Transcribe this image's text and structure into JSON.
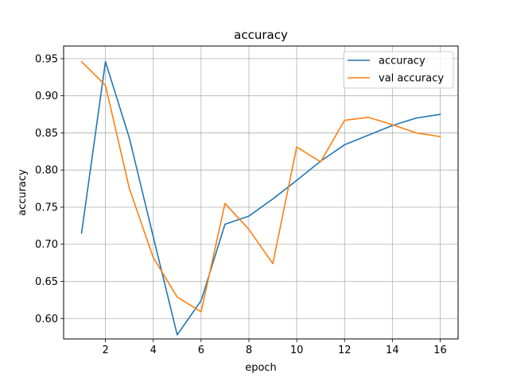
{
  "chart_data": {
    "type": "line",
    "title": "accuracy",
    "xlabel": "epoch",
    "ylabel": "accuracy",
    "xlim": [
      0.25,
      16.75
    ],
    "ylim": [
      0.5725,
      0.967
    ],
    "xticks": [
      2,
      4,
      6,
      8,
      10,
      12,
      14,
      16
    ],
    "yticks": [
      0.6,
      0.65,
      0.7,
      0.75,
      0.8,
      0.85,
      0.9,
      0.95
    ],
    "grid": true,
    "legend_position": "top-right",
    "x": [
      1,
      2,
      3,
      4,
      5,
      6,
      7,
      8,
      9,
      10,
      11,
      12,
      13,
      14,
      15,
      16
    ],
    "series": [
      {
        "name": "accuracy",
        "color": "#1f77b4",
        "values": [
          0.715,
          0.946,
          0.843,
          0.71,
          0.578,
          0.624,
          0.727,
          0.738,
          0.761,
          0.786,
          0.812,
          0.834,
          0.847,
          0.86,
          0.87,
          0.875
        ]
      },
      {
        "name": "val accuracy",
        "color": "#ff7f0e",
        "values": [
          0.946,
          0.914,
          0.775,
          0.682,
          0.629,
          0.609,
          0.755,
          0.72,
          0.674,
          0.831,
          0.811,
          0.867,
          0.871,
          0.861,
          0.85,
          0.845
        ]
      }
    ]
  }
}
